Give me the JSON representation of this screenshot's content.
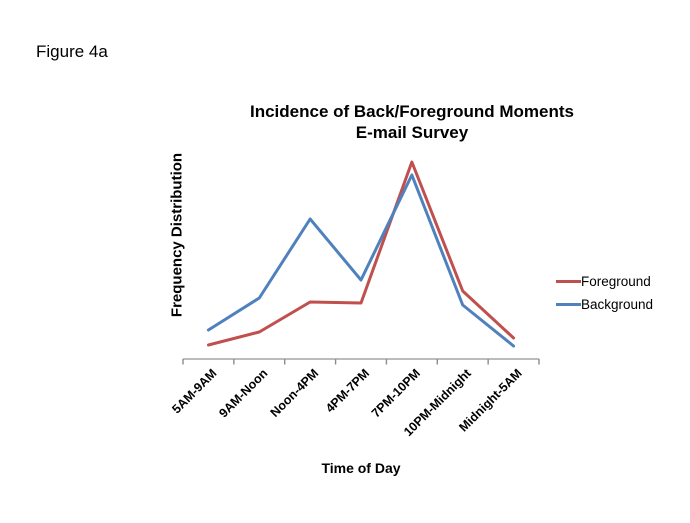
{
  "figure_label": "Figure 4a",
  "chart_data": {
    "type": "line",
    "title": "Incidence of Back/Foreground Moments",
    "subtitle": "E-mail Survey",
    "xlabel": "Time of Day",
    "ylabel": "Frequency Distribution",
    "categories": [
      "5AM-9AM",
      "9AM-Noon",
      "Noon-4PM",
      "4PM-7PM",
      "7PM-10PM",
      "10PM-Midnight",
      "Midnight-5AM"
    ],
    "series": [
      {
        "name": "Foreground",
        "color": "#C0504D",
        "values": [
          7,
          13.5,
          28.5,
          28,
          98.5,
          34,
          10.5
        ]
      },
      {
        "name": "Background",
        "color": "#4F81BD",
        "values": [
          14.5,
          30.5,
          70,
          39.5,
          92,
          27,
          6.5
        ]
      }
    ],
    "ylim": [
      0,
      100
    ],
    "grid": false,
    "legend_position": "right",
    "axis_color": "#A6A6A6",
    "tick_color": "#8C8C8C",
    "text_color": "#000000"
  }
}
